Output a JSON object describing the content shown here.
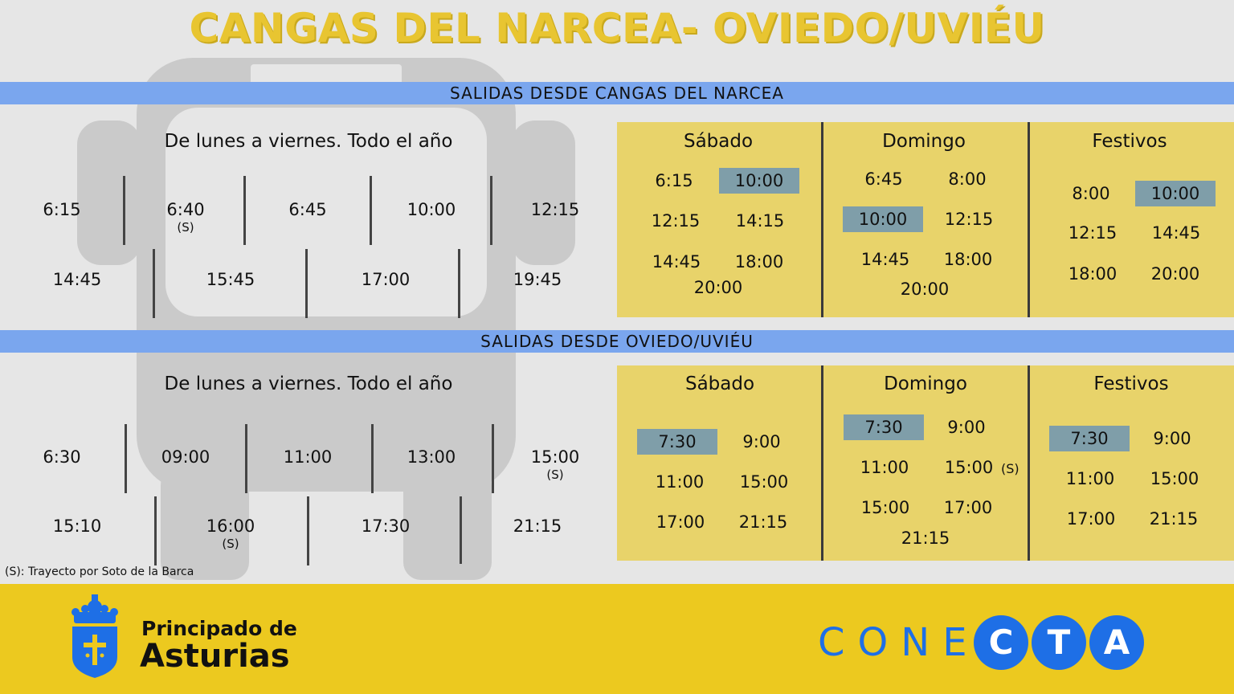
{
  "title": "CANGAS DEL NARCEA- OVIEDO/UVIÉU",
  "section1": {
    "band": "SALIDAS DESDE CANGAS DEL NARCEA",
    "weekday_title": "De lunes a viernes. Todo el año",
    "row1": [
      {
        "time": "6:15",
        "note": ""
      },
      {
        "time": "6:40",
        "note": "(S)"
      },
      {
        "time": "6:45",
        "note": ""
      },
      {
        "time": "10:00",
        "note": ""
      },
      {
        "time": "12:15",
        "note": ""
      }
    ],
    "row2": [
      "14:45",
      "15:45",
      "17:00",
      "19:45"
    ],
    "sabado": {
      "label": "Sábado",
      "times": [
        "6:15",
        "10:00",
        "12:15",
        "14:15",
        "14:45",
        "18:00",
        "20:00"
      ]
    },
    "domingo": {
      "label": "Domingo",
      "times": [
        "6:45",
        "8:00",
        "10:00",
        "12:15",
        "14:45",
        "18:00",
        "20:00"
      ]
    },
    "festivos": {
      "label": "Festivos",
      "times": [
        "8:00",
        "10:00",
        "12:15",
        "14:45",
        "18:00",
        "20:00"
      ]
    }
  },
  "section2": {
    "band": "SALIDAS DESDE OVIEDO/UVIÉU",
    "weekday_title": "De lunes a viernes. Todo el año",
    "row1": [
      {
        "time": "6:30",
        "note": ""
      },
      {
        "time": "09:00",
        "note": ""
      },
      {
        "time": "11:00",
        "note": ""
      },
      {
        "time": "13:00",
        "note": ""
      },
      {
        "time": "15:00",
        "note": "(S)"
      }
    ],
    "row2": [
      {
        "time": "15:10",
        "note": ""
      },
      {
        "time": "16:00",
        "note": "(S)"
      },
      {
        "time": "17:30",
        "note": ""
      },
      {
        "time": "21:15",
        "note": ""
      }
    ],
    "sabado": {
      "label": "Sábado",
      "times": [
        "7:30",
        "9:00",
        "11:00",
        "15:00",
        "17:00",
        "21:15"
      ]
    },
    "domingo": {
      "label": "Domingo",
      "times": [
        "7:30",
        "9:00",
        "11:00",
        "15:00",
        "15:00",
        "17:00",
        "21:15"
      ],
      "note": "(S)"
    },
    "festivos": {
      "label": "Festivos",
      "times": [
        "7:30",
        "9:00",
        "11:00",
        "15:00",
        "17:00",
        "21:15"
      ]
    }
  },
  "footnote": "(S): Trayecto por Soto de la Barca",
  "footer": {
    "org_line1": "Principado de",
    "org_line2": "Asturias",
    "brand_plain": "CONE",
    "brand_letters": [
      "C",
      "T",
      "A"
    ]
  },
  "colors": {
    "highlight": "#7f9ea9",
    "card": "#e8d36a",
    "band": "#7aa6ee",
    "footer": "#ecc91f",
    "brand_blue": "#1e6fe6",
    "title": "#e8c531"
  }
}
